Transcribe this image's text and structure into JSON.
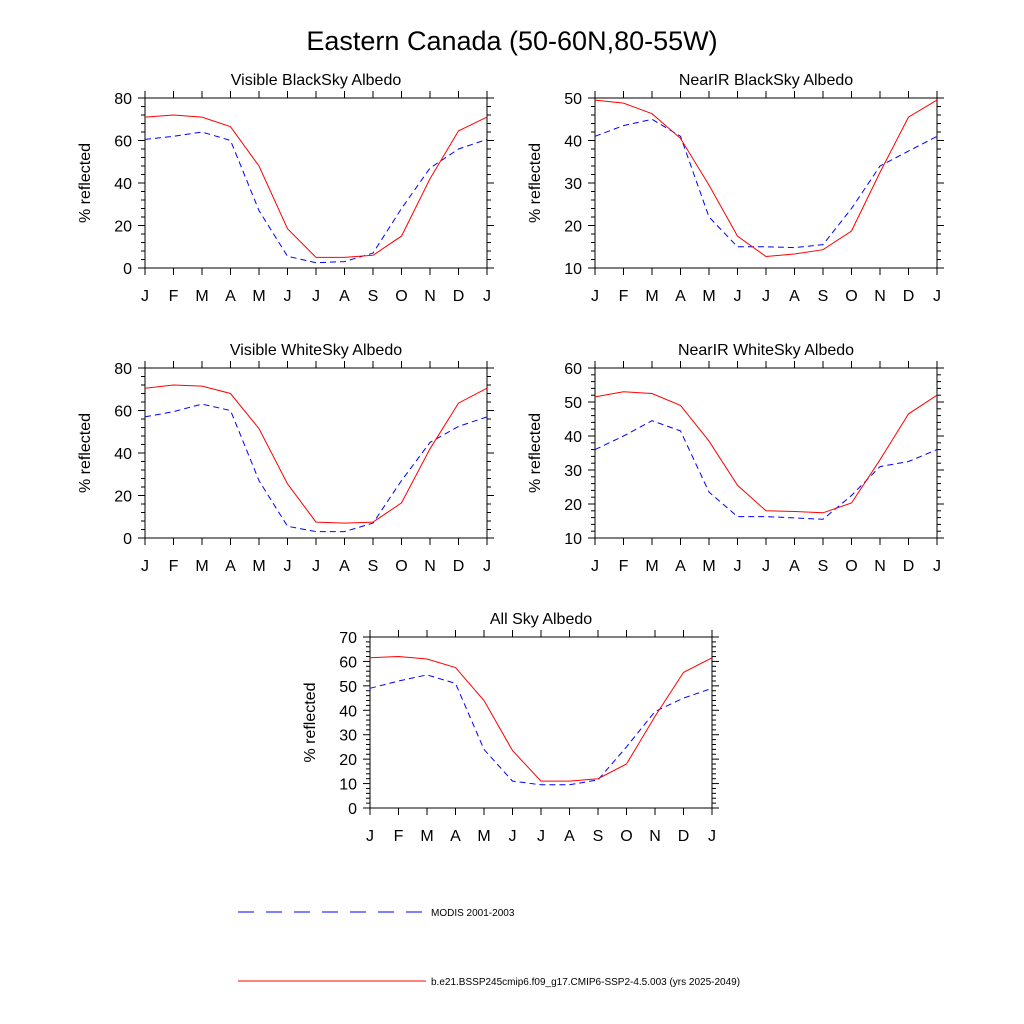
{
  "figure": {
    "title": "Eastern Canada (50-60N,80-55W)"
  },
  "style": {
    "model_color": "#ff0000",
    "obs_color": "#0000ff",
    "axis_color": "#000000"
  },
  "legend": {
    "obs_label": "MODIS 2001-2003",
    "model_label": "b.e21.BSSP245cmip6.f09_g17.CMIP6-SSP2-4.5.003 (yrs 2025-2049)"
  },
  "chart_data": [
    {
      "type": "line",
      "title": "Visible BlackSky Albedo",
      "ylabel": "% reflected",
      "xlabel": "",
      "categories": [
        "J",
        "F",
        "M",
        "A",
        "M",
        "J",
        "J",
        "A",
        "S",
        "O",
        "N",
        "D",
        "J"
      ],
      "ylim": [
        0,
        80
      ],
      "yticks": [
        0,
        20,
        40,
        60,
        80
      ],
      "series": [
        {
          "name": "MODIS 2001-2003",
          "style": "dashed",
          "values": [
            60.5,
            62,
            64,
            60,
            27,
            5.5,
            2.5,
            3,
            7,
            28,
            47,
            56,
            60.5
          ]
        },
        {
          "name": "b.e21.BSSP245cmip6.f09_g17.CMIP6-SSP2-4.5.003 (yrs 2025-2049)",
          "style": "solid",
          "values": [
            71,
            72,
            71,
            66.5,
            48,
            18.5,
            5,
            5,
            6,
            15,
            42,
            64.5,
            71
          ]
        }
      ]
    },
    {
      "type": "line",
      "title": "NearIR BlackSky Albedo",
      "ylabel": "% reflected",
      "xlabel": "",
      "categories": [
        "J",
        "F",
        "M",
        "A",
        "M",
        "J",
        "J",
        "A",
        "S",
        "O",
        "N",
        "D",
        "J"
      ],
      "ylim": [
        10,
        50
      ],
      "yticks": [
        10,
        20,
        30,
        40,
        50
      ],
      "series": [
        {
          "name": "MODIS 2001-2003",
          "style": "dashed",
          "values": [
            41,
            43.5,
            45,
            41,
            22,
            15,
            15,
            14.8,
            15.5,
            24,
            34,
            37.5,
            41
          ]
        },
        {
          "name": "b.e21.BSSP245cmip6.f09_g17.CMIP6-SSP2-4.5.003 (yrs 2025-2049)",
          "style": "solid",
          "values": [
            49.5,
            48.8,
            46.3,
            40.5,
            29.5,
            17.5,
            12.7,
            13.3,
            14.3,
            18.7,
            32.5,
            45.5,
            49.5
          ]
        }
      ]
    },
    {
      "type": "line",
      "title": "Visible WhiteSky Albedo",
      "ylabel": "% reflected",
      "xlabel": "",
      "categories": [
        "J",
        "F",
        "M",
        "A",
        "M",
        "J",
        "J",
        "A",
        "S",
        "O",
        "N",
        "D",
        "J"
      ],
      "ylim": [
        0,
        80
      ],
      "yticks": [
        0,
        20,
        40,
        60,
        80
      ],
      "series": [
        {
          "name": "MODIS 2001-2003",
          "style": "dashed",
          "values": [
            57,
            59.5,
            63,
            60,
            27,
            5.5,
            3,
            3,
            7,
            27,
            45,
            52.5,
            57
          ]
        },
        {
          "name": "b.e21.BSSP245cmip6.f09_g17.CMIP6-SSP2-4.5.003 (yrs 2025-2049)",
          "style": "solid",
          "values": [
            70.5,
            72,
            71.5,
            68,
            51.5,
            25.5,
            7.5,
            7,
            7.5,
            16.5,
            42,
            63.5,
            70.5
          ]
        }
      ]
    },
    {
      "type": "line",
      "title": "NearIR WhiteSky Albedo",
      "ylabel": "% reflected",
      "xlabel": "",
      "categories": [
        "J",
        "F",
        "M",
        "A",
        "M",
        "J",
        "J",
        "A",
        "S",
        "O",
        "N",
        "D",
        "J"
      ],
      "ylim": [
        10,
        60
      ],
      "yticks": [
        10,
        20,
        30,
        40,
        50,
        60
      ],
      "series": [
        {
          "name": "MODIS 2001-2003",
          "style": "dashed",
          "values": [
            36,
            40,
            44.5,
            41.5,
            23.5,
            16.3,
            16.3,
            15.9,
            15.5,
            22.5,
            31,
            32.5,
            36
          ]
        },
        {
          "name": "b.e21.BSSP245cmip6.f09_g17.CMIP6-SSP2-4.5.003 (yrs 2025-2049)",
          "style": "solid",
          "values": [
            51.5,
            53,
            52.5,
            49,
            38.5,
            25.5,
            18,
            17.8,
            17.4,
            20.3,
            33,
            46.5,
            52
          ]
        }
      ]
    },
    {
      "type": "line",
      "title": "All Sky Albedo",
      "ylabel": "% reflected",
      "xlabel": "",
      "categories": [
        "J",
        "F",
        "M",
        "A",
        "M",
        "J",
        "J",
        "A",
        "S",
        "O",
        "N",
        "D",
        "J"
      ],
      "ylim": [
        0,
        70
      ],
      "yticks": [
        0,
        10,
        20,
        30,
        40,
        50,
        60,
        70
      ],
      "series": [
        {
          "name": "MODIS 2001-2003",
          "style": "dashed",
          "values": [
            49,
            52,
            54.5,
            51,
            24,
            11,
            9.5,
            9.5,
            11.5,
            25,
            39.5,
            45,
            49
          ]
        },
        {
          "name": "b.e21.BSSP245cmip6.f09_g17.CMIP6-SSP2-4.5.003 (yrs 2025-2049)",
          "style": "solid",
          "values": [
            61.5,
            62,
            61,
            57.5,
            44,
            23.5,
            11,
            11,
            12,
            18,
            37.5,
            55.5,
            61.5
          ]
        }
      ]
    }
  ]
}
